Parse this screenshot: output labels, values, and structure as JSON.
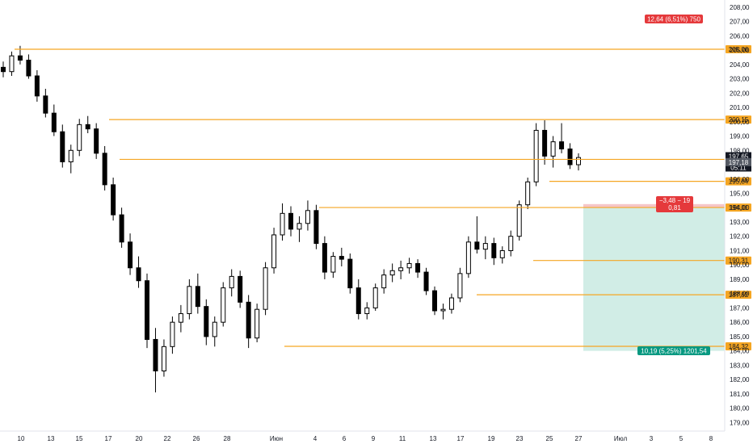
{
  "chart_data": {
    "type": "candlestick",
    "y_axis": {
      "ylim": [
        178.4,
        208.5
      ],
      "ticks": [
        "179,00",
        "180,00",
        "181,00",
        "182,00",
        "183,00",
        "184,00",
        "185,00",
        "186,00",
        "187,00",
        "188,00",
        "189,00",
        "190,00",
        "191,00",
        "192,00",
        "193,00",
        "194,00",
        "195,00",
        "196,00",
        "197,00",
        "198,00",
        "199,00",
        "200,00",
        "201,00",
        "202,00",
        "203,00",
        "204,00",
        "205,00",
        "206,00",
        "207,00",
        "208,00"
      ]
    },
    "x_axis": {
      "ticks": [
        "10",
        "13",
        "15",
        "17",
        "20",
        "22",
        "26",
        "28",
        "Июн",
        "4",
        "6",
        "9",
        "11",
        "13",
        "17",
        "19",
        "23",
        "25",
        "27",
        "Июл",
        "3",
        "5",
        "8"
      ]
    },
    "horizontal_levels": [
      {
        "price": 205.06,
        "label": "205,06"
      },
      {
        "price": 200.15,
        "label": "200,15"
      },
      {
        "price": 197.37,
        "label": "197,37"
      },
      {
        "price": 195.84,
        "label": "195,84"
      },
      {
        "price": 194.01,
        "label": "194,01"
      },
      {
        "price": 190.31,
        "label": "190,31"
      },
      {
        "price": 187.92,
        "label": "187,92"
      },
      {
        "price": 184.32,
        "label": "184,32"
      }
    ],
    "price_tags": {
      "last": {
        "price": 197.65,
        "change": "−0,53%",
        "timer": "05:11"
      },
      "level_197_18": "197,18"
    },
    "position": {
      "entry": 194.01,
      "target_label": "10,19 (5,25%) 1201,54",
      "stop_label_line1": "−3,48 − 19",
      "stop_label_line2": "0,81",
      "top_label": "12,64 (6,51%) 750"
    },
    "candles_summary": "daily/hourly OHLC from ~10 May to 27 Jun",
    "candles": [
      [
        203.8,
        204.2,
        203.1,
        203.5
      ],
      [
        203.5,
        204.9,
        203.2,
        204.6
      ],
      [
        204.6,
        205.3,
        204.0,
        204.3
      ],
      [
        204.3,
        204.7,
        203.0,
        203.2
      ],
      [
        203.2,
        203.6,
        201.4,
        201.8
      ],
      [
        201.8,
        202.3,
        200.3,
        200.6
      ],
      [
        200.6,
        201.2,
        199.0,
        199.3
      ],
      [
        199.3,
        199.8,
        196.8,
        197.2
      ],
      [
        197.2,
        198.4,
        196.4,
        198.0
      ],
      [
        198.0,
        200.2,
        197.6,
        199.8
      ],
      [
        199.8,
        200.4,
        199.2,
        199.5
      ],
      [
        199.5,
        199.9,
        197.4,
        197.8
      ],
      [
        197.8,
        198.3,
        195.2,
        195.6
      ],
      [
        195.6,
        196.1,
        193.1,
        193.5
      ],
      [
        193.5,
        194.0,
        191.2,
        191.6
      ],
      [
        191.6,
        192.2,
        189.3,
        189.8
      ],
      [
        189.8,
        190.6,
        188.4,
        188.9
      ],
      [
        188.9,
        189.4,
        184.2,
        184.8
      ],
      [
        184.8,
        185.6,
        181.1,
        182.6
      ],
      [
        182.6,
        184.8,
        182.2,
        184.3
      ],
      [
        184.3,
        186.4,
        183.8,
        186.0
      ],
      [
        186.0,
        187.2,
        185.3,
        186.6
      ],
      [
        186.6,
        189.0,
        186.2,
        188.5
      ],
      [
        188.5,
        189.4,
        186.6,
        187.1
      ],
      [
        187.1,
        187.6,
        184.4,
        185.0
      ],
      [
        185.0,
        186.4,
        184.3,
        186.0
      ],
      [
        186.0,
        188.8,
        185.7,
        188.4
      ],
      [
        188.4,
        189.7,
        187.8,
        189.2
      ],
      [
        189.2,
        189.6,
        187.0,
        187.4
      ],
      [
        187.4,
        187.9,
        184.2,
        184.9
      ],
      [
        184.9,
        187.3,
        184.6,
        186.9
      ],
      [
        186.9,
        190.2,
        186.5,
        189.8
      ],
      [
        189.8,
        192.6,
        189.4,
        192.1
      ],
      [
        192.1,
        194.3,
        191.7,
        193.6
      ],
      [
        193.6,
        194.1,
        192.0,
        192.5
      ],
      [
        192.5,
        193.4,
        191.6,
        192.9
      ],
      [
        192.9,
        194.5,
        192.4,
        193.8
      ],
      [
        193.8,
        194.2,
        191.1,
        191.5
      ],
      [
        191.5,
        192.0,
        189.0,
        189.5
      ],
      [
        189.5,
        190.9,
        189.1,
        190.6
      ],
      [
        190.6,
        191.2,
        189.9,
        190.4
      ],
      [
        190.4,
        190.8,
        188.0,
        188.4
      ],
      [
        188.4,
        189.0,
        186.2,
        186.6
      ],
      [
        186.6,
        187.4,
        186.2,
        187.0
      ],
      [
        187.0,
        188.7,
        186.8,
        188.4
      ],
      [
        188.4,
        189.7,
        188.0,
        189.3
      ],
      [
        189.3,
        190.1,
        188.8,
        189.6
      ],
      [
        189.6,
        190.3,
        189.0,
        189.8
      ],
      [
        189.8,
        190.5,
        189.4,
        190.1
      ],
      [
        190.1,
        190.4,
        189.1,
        189.5
      ],
      [
        189.5,
        189.8,
        187.9,
        188.2
      ],
      [
        188.2,
        188.5,
        186.5,
        186.8
      ],
      [
        186.8,
        187.3,
        186.2,
        186.9
      ],
      [
        186.9,
        188.0,
        186.6,
        187.7
      ],
      [
        187.7,
        189.8,
        187.4,
        189.4
      ],
      [
        189.4,
        192.0,
        189.1,
        191.6
      ],
      [
        191.6,
        193.4,
        190.8,
        191.1
      ],
      [
        191.1,
        192.0,
        190.4,
        191.5
      ],
      [
        191.5,
        191.9,
        190.0,
        190.5
      ],
      [
        190.5,
        191.3,
        190.1,
        191.0
      ],
      [
        191.0,
        192.4,
        190.6,
        192.0
      ],
      [
        192.0,
        194.5,
        191.7,
        194.2
      ],
      [
        194.2,
        196.1,
        193.9,
        195.8
      ],
      [
        195.8,
        199.9,
        195.5,
        199.4
      ],
      [
        199.4,
        200.1,
        197.0,
        197.6
      ],
      [
        197.6,
        199.0,
        196.8,
        198.6
      ],
      [
        198.6,
        199.9,
        197.8,
        198.1
      ],
      [
        198.1,
        198.5,
        196.7,
        197.0
      ],
      [
        197.0,
        197.8,
        196.6,
        197.5
      ]
    ]
  }
}
